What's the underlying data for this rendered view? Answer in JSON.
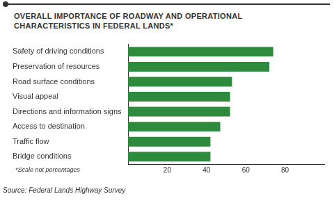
{
  "chart_data": {
    "type": "bar",
    "orientation": "horizontal",
    "title": "OVERALL IMPORTANCE OF ROADWAY AND OPERATIONAL CHARACTERISTICS IN FEDERAL LANDS*",
    "categories": [
      "Safety of driving conditions",
      "Preservation of resources",
      "Road surface conditions",
      "Visual appeal",
      "Directions and information signs",
      "Access to destination",
      "Traffic flow",
      "Bridge conditions"
    ],
    "values": [
      74,
      72,
      53,
      52,
      52,
      47,
      42,
      42
    ],
    "color": "#2e8b3e",
    "xlim": [
      0,
      100
    ],
    "xticks": [
      20,
      40,
      60,
      80
    ],
    "grid": false,
    "note": "*Scale not percentages",
    "source": "Source: Federal Lands Highway Survey"
  }
}
